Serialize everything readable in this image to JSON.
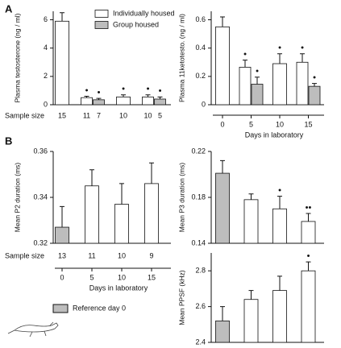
{
  "panel_labels": [
    "A",
    "B"
  ],
  "legend": {
    "label": "Reference day 0",
    "color": "#bdbdbd"
  },
  "chart_data": [
    {
      "type": "bar",
      "ylabel": "Plasma testosterone (ng / ml)",
      "ylim": [
        0,
        6.6
      ],
      "yticks": [
        0,
        2,
        4,
        6
      ],
      "x": [
        0,
        5,
        10,
        15
      ],
      "sample_size_label": "Sample size",
      "legend": "top",
      "series": [
        {
          "name": "Group housed",
          "color": "#bdbdbd",
          "values": [
            null,
            0.35,
            null,
            0.4
          ],
          "errors": [
            null,
            0.1,
            null,
            0.15
          ],
          "markers": [
            null,
            "•",
            null,
            "•"
          ],
          "n": [
            null,
            7,
            null,
            5
          ]
        },
        {
          "name": "Individually housed",
          "color": "#ffffff",
          "values": [
            5.9,
            0.5,
            0.55,
            0.55
          ],
          "errors": [
            0.6,
            0.1,
            0.15,
            0.15
          ],
          "markers": [
            null,
            "•",
            "•",
            "•"
          ],
          "n": [
            15,
            11,
            10,
            10
          ]
        }
      ]
    },
    {
      "type": "bar",
      "ylabel": "Plasma 11ketotesto. (ng / ml)",
      "ylim": [
        0,
        0.66
      ],
      "yticks": [
        0,
        0.2,
        0.4,
        0.6
      ],
      "x": [
        0,
        5,
        10,
        15
      ],
      "xticks": [
        0,
        5,
        10,
        15
      ],
      "xlabel": "Days in laboratory",
      "series": [
        {
          "color": "#bdbdbd",
          "values": [
            null,
            0.145,
            null,
            0.13
          ],
          "errors": [
            null,
            0.05,
            null,
            0.02
          ],
          "markers": [
            null,
            "•",
            null,
            "•"
          ]
        },
        {
          "color": "#ffffff",
          "values": [
            0.55,
            0.265,
            0.29,
            0.3
          ],
          "errors": [
            0.07,
            0.05,
            0.07,
            0.06
          ],
          "markers": [
            null,
            "•",
            "•",
            "•"
          ]
        }
      ]
    },
    {
      "type": "bar",
      "ylabel": "Mean P2 duration (ms)",
      "ylim": [
        0.32,
        0.36
      ],
      "yticks": [
        0.32,
        0.34,
        0.36
      ],
      "x": [
        0,
        5,
        10,
        15
      ],
      "xticks": [
        0,
        5,
        10,
        15
      ],
      "xlabel": "Days in laboratory",
      "sample_size_label": "Sample size",
      "series": [
        {
          "colors": [
            "#bdbdbd",
            "#ffffff",
            "#ffffff",
            "#ffffff"
          ],
          "values": [
            0.327,
            0.345,
            0.337,
            0.346
          ],
          "errors": [
            0.009,
            0.007,
            0.009,
            0.009
          ],
          "n": [
            13,
            11,
            10,
            9
          ]
        }
      ]
    },
    {
      "type": "bar",
      "ylabel": "Mean P3 duration (ms)",
      "ylim": [
        0.14,
        0.22
      ],
      "yticks": [
        0.14,
        0.18,
        0.22
      ],
      "x": [
        0,
        5,
        10,
        15
      ],
      "series": [
        {
          "colors": [
            "#bdbdbd",
            "#ffffff",
            "#ffffff",
            "#ffffff"
          ],
          "values": [
            0.201,
            0.178,
            0.17,
            0.159
          ],
          "errors": [
            0.011,
            0.005,
            0.011,
            0.007
          ],
          "markers": [
            null,
            null,
            "•",
            "••"
          ]
        }
      ]
    },
    {
      "type": "bar",
      "ylabel": "Mean PPSF (kHz)",
      "ylim": [
        2.4,
        2.9
      ],
      "yticks": [
        2.4,
        2.6,
        2.8
      ],
      "x": [
        0,
        5,
        10,
        15
      ],
      "series": [
        {
          "colors": [
            "#bdbdbd",
            "#ffffff",
            "#ffffff",
            "#ffffff"
          ],
          "values": [
            2.52,
            2.64,
            2.69,
            2.8
          ],
          "errors": [
            0.08,
            0.05,
            0.08,
            0.05
          ],
          "markers": [
            null,
            null,
            null,
            "•"
          ]
        }
      ]
    }
  ]
}
